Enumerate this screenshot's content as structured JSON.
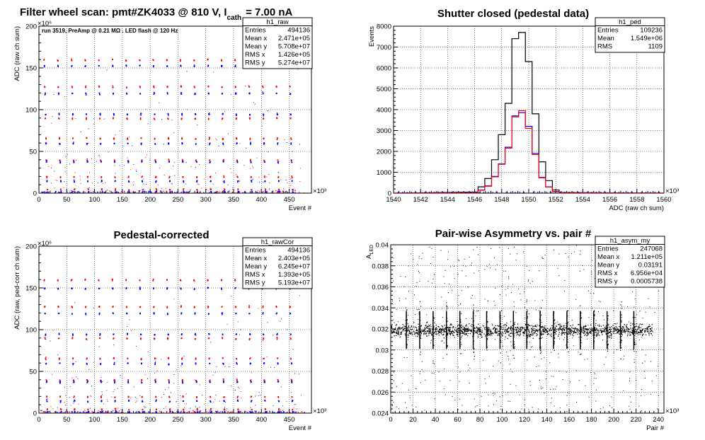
{
  "chart_data": [
    {
      "id": "raw",
      "type": "scatter",
      "title": "Filter wheel scan: pmt#ZK4033 @   810 V, I",
      "title_sub": "cath",
      "title_tail": "= 7.00 nA",
      "note": "run 3519, PreAmp @ 0.21 MΩ . LED flash @  120 Hz",
      "xlabel": "Event #",
      "ylabel": "ADC (raw ch sum)",
      "x_exponent": "×10³",
      "y_exponent": "×10⁶",
      "xlim": [
        0,
        490
      ],
      "ylim": [
        0,
        200
      ],
      "xticks": [
        0,
        50,
        100,
        150,
        200,
        250,
        300,
        350,
        400,
        450
      ],
      "yticks": [
        0,
        50,
        100,
        150,
        200
      ],
      "grid": true,
      "series": [
        {
          "color": "#ff0000",
          "levels": [
            160,
            128,
            90,
            66,
            40,
            20,
            5
          ]
        },
        {
          "color": "#0000ff",
          "levels": [
            153,
            120,
            95,
            60,
            38,
            15,
            2
          ]
        }
      ],
      "stats": {
        "name": "h1_raw",
        "rows": [
          [
            "Entries",
            "494136"
          ],
          [
            "Mean x",
            "2.471e+05"
          ],
          [
            "Mean y",
            "5.708e+07"
          ],
          [
            "RMS x",
            "1.426e+05"
          ],
          [
            "RMS y",
            "5.274e+07"
          ]
        ]
      }
    },
    {
      "id": "ped",
      "type": "line",
      "title": "Shutter closed (pedestal data)",
      "xlabel": "ADC (raw ch sum)",
      "ylabel": "Events",
      "x_exponent": "×10³",
      "xlim": [
        1540,
        1560
      ],
      "ylim": [
        0,
        8000
      ],
      "xticks": [
        1540,
        1542,
        1544,
        1546,
        1548,
        1550,
        1552,
        1554,
        1556,
        1558,
        1560
      ],
      "yticks": [
        0,
        1000,
        2000,
        3000,
        4000,
        5000,
        6000,
        7000,
        8000
      ],
      "grid": true,
      "series": [
        {
          "color": "#000000",
          "x": [
            1546.0,
            1546.5,
            1547.0,
            1547.5,
            1548.0,
            1548.5,
            1549.0,
            1549.5,
            1550.0,
            1550.5,
            1551.0,
            1551.5,
            1552.0,
            1552.5
          ],
          "y": [
            50,
            300,
            700,
            1600,
            2800,
            4300,
            7400,
            7700,
            6300,
            3800,
            1500,
            600,
            150,
            30
          ]
        },
        {
          "color": "#0000ff",
          "x": [
            1546.0,
            1546.5,
            1547.0,
            1547.5,
            1548.0,
            1548.5,
            1549.0,
            1549.5,
            1550.0,
            1550.5,
            1551.0,
            1551.5,
            1552.0,
            1552.5
          ],
          "y": [
            25,
            150,
            350,
            800,
            1400,
            2200,
            3700,
            3850,
            3200,
            1900,
            750,
            300,
            80,
            15
          ]
        },
        {
          "color": "#ff0000",
          "x": [
            1546.0,
            1546.5,
            1547.0,
            1547.5,
            1548.0,
            1548.5,
            1549.0,
            1549.5,
            1550.0,
            1550.5,
            1551.0,
            1551.5,
            1552.0,
            1552.5
          ],
          "y": [
            20,
            140,
            330,
            780,
            1380,
            2150,
            3650,
            3950,
            3100,
            1850,
            730,
            290,
            70,
            15
          ]
        }
      ],
      "stats": {
        "name": "h1_ped",
        "rows": [
          [
            "Entries",
            "109236"
          ],
          [
            "Mean",
            "1.549e+06"
          ],
          [
            "RMS",
            "1109"
          ]
        ]
      }
    },
    {
      "id": "cor",
      "type": "scatter",
      "title": "Pedestal-corrected",
      "xlabel": "Event #",
      "ylabel": "ADC (raw, ped-corr ch sum)",
      "x_exponent": "×10³",
      "y_exponent": "×10⁶",
      "xlim": [
        0,
        490
      ],
      "ylim": [
        0,
        200
      ],
      "xticks": [
        0,
        50,
        100,
        150,
        200,
        250,
        300,
        350,
        400,
        450
      ],
      "yticks": [
        0,
        50,
        100,
        150,
        200
      ],
      "grid": true,
      "series": [
        {
          "color": "#ff0000",
          "levels": [
            160,
            128,
            90,
            66,
            40,
            20,
            5
          ]
        },
        {
          "color": "#0000ff",
          "levels": [
            150,
            120,
            95,
            60,
            38,
            15,
            2
          ]
        }
      ],
      "stats": {
        "name": "h1_rawCor",
        "rows": [
          [
            "Entries",
            "494136"
          ],
          [
            "Mean x",
            "2.403e+05"
          ],
          [
            "Mean y",
            "6.245e+07"
          ],
          [
            "RMS x",
            "1.393e+05"
          ],
          [
            "RMS y",
            "5.193e+07"
          ]
        ]
      }
    },
    {
      "id": "asym",
      "type": "scatter",
      "title": "Pair-wise Asymmetry vs. pair #",
      "xlabel": "Pair #",
      "ylabel": "A",
      "ylabel_sub": "LED",
      "x_exponent": "×10³",
      "xlim": [
        0,
        245
      ],
      "ylim": [
        0.024,
        0.04
      ],
      "xticks": [
        0,
        20,
        40,
        60,
        80,
        100,
        120,
        140,
        160,
        180,
        200,
        220,
        240
      ],
      "yticks": [
        0.024,
        0.026,
        0.028,
        0.03,
        0.032,
        0.034,
        0.036,
        0.038,
        0.04
      ],
      "ytick_labels": [
        "0.024",
        "0.026",
        "0.028",
        "0.03",
        "0.032",
        "0.034",
        "0.036",
        "0.038",
        "0.04"
      ],
      "grid": true,
      "band": {
        "x": [
          0,
          234
        ],
        "center": 0.0319,
        "halfwidth": 0.0005
      },
      "spike_x": [
        14,
        26,
        38,
        50,
        62,
        74,
        86,
        98,
        110,
        122,
        134,
        146,
        158,
        170,
        182,
        194,
        206,
        218
      ],
      "stats": {
        "name": "h1_asym_my",
        "rows": [
          [
            "Entries",
            "247068"
          ],
          [
            "Mean x",
            "1.211e+05"
          ],
          [
            "Mean y",
            "0.03191"
          ],
          [
            "RMS x",
            "6.956e+04"
          ],
          [
            "RMS y",
            "0.0005738"
          ]
        ]
      }
    }
  ]
}
